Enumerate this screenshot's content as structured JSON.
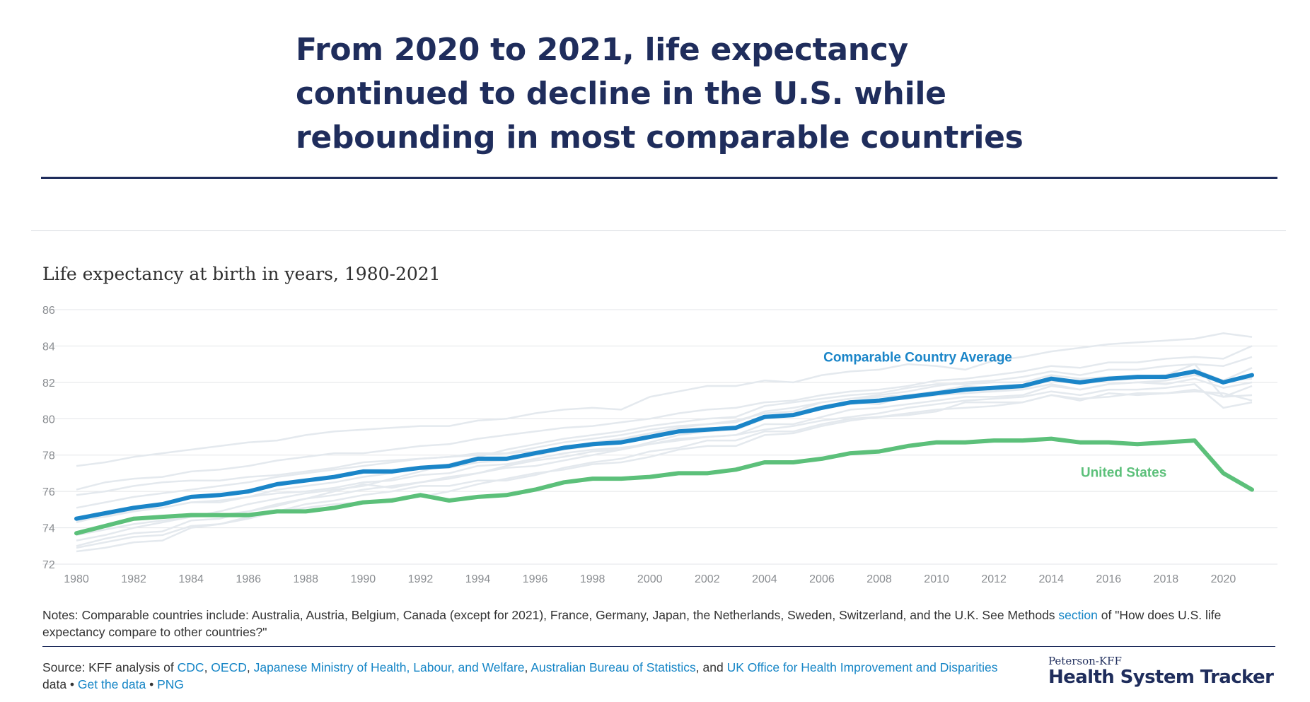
{
  "title": "From 2020 to 2021, life expectancy continued to decline in the U.S. while rebounding in most comparable countries",
  "subtitle": "Life expectancy at birth in years, 1980-2021",
  "notes": {
    "before_link": "Notes: Comparable countries include: Australia, Austria, Belgium, Canada (except for 2021), France, Germany, Japan, the Netherlands, Sweden, Switzerland, and the U.K. See Methods ",
    "link": "section",
    "after_link": " of \"How does U.S. life expectancy compare to other countries?\""
  },
  "source": {
    "prefix": "Source: KFF analysis of ",
    "links": [
      "CDC",
      "OECD",
      "Japanese Ministry of Health, Labour, and Welfare",
      "Australian Bureau of Statistics",
      "UK Office for Health Improvement and Disparities"
    ],
    "sep1": ", ",
    "and": ", and ",
    "data_word": " data • ",
    "get_data": "Get the data",
    "bullet": " • ",
    "png": "PNG"
  },
  "brand": {
    "small": "Peterson-KFF",
    "big": "Health System Tracker"
  },
  "colors": {
    "navy": "#1f2d5c",
    "avg": "#1a85c8",
    "us": "#5cc07a",
    "background_lines": "#e4e9ee",
    "grid": "#e3e5e8",
    "link": "#1585c6"
  },
  "chart_data": {
    "type": "line",
    "x": [
      1980,
      1981,
      1982,
      1983,
      1984,
      1985,
      1986,
      1987,
      1988,
      1989,
      1990,
      1991,
      1992,
      1993,
      1994,
      1995,
      1996,
      1997,
      1998,
      1999,
      2000,
      2001,
      2002,
      2003,
      2004,
      2005,
      2006,
      2007,
      2008,
      2009,
      2010,
      2011,
      2012,
      2013,
      2014,
      2015,
      2016,
      2017,
      2018,
      2019,
      2020,
      2021
    ],
    "x_ticks": [
      "1980",
      "1982",
      "1984",
      "1986",
      "1988",
      "1990",
      "1992",
      "1994",
      "1996",
      "1998",
      "2000",
      "2002",
      "2004",
      "2006",
      "2008",
      "2010",
      "2012",
      "2014",
      "2016",
      "2018",
      "2020"
    ],
    "ylim": [
      72,
      86
    ],
    "y_ticks": [
      "72",
      "74",
      "76",
      "78",
      "80",
      "82",
      "84",
      "86"
    ],
    "grid": true,
    "series": [
      {
        "name": "Comparable Country Average",
        "color": "#1a85c8",
        "values": [
          74.5,
          74.8,
          75.1,
          75.3,
          75.7,
          75.8,
          76.0,
          76.4,
          76.6,
          76.8,
          77.1,
          77.1,
          77.3,
          77.4,
          77.8,
          77.8,
          78.1,
          78.4,
          78.6,
          78.7,
          79.0,
          79.3,
          79.4,
          79.5,
          80.1,
          80.2,
          80.6,
          80.9,
          81.0,
          81.2,
          81.4,
          81.6,
          81.7,
          81.8,
          82.2,
          82.0,
          82.2,
          82.3,
          82.3,
          82.6,
          82.0,
          82.4
        ]
      },
      {
        "name": "United States",
        "color": "#5cc07a",
        "values": [
          73.7,
          74.1,
          74.5,
          74.6,
          74.7,
          74.7,
          74.7,
          74.9,
          74.9,
          75.1,
          75.4,
          75.5,
          75.8,
          75.5,
          75.7,
          75.8,
          76.1,
          76.5,
          76.7,
          76.7,
          76.8,
          77.0,
          77.0,
          77.2,
          77.6,
          77.6,
          77.8,
          78.1,
          78.2,
          78.5,
          78.7,
          78.7,
          78.8,
          78.8,
          78.9,
          78.7,
          78.7,
          78.6,
          78.7,
          78.8,
          77.0,
          76.1
        ]
      }
    ],
    "background_series": [
      [
        77.4,
        77.6,
        77.9,
        78.1,
        78.3,
        78.5,
        78.7,
        78.8,
        79.1,
        79.3,
        79.4,
        79.5,
        79.6,
        79.6,
        79.9,
        80.0,
        80.3,
        80.5,
        80.6,
        80.5,
        81.2,
        81.5,
        81.8,
        81.8,
        82.1,
        82.0,
        82.4,
        82.6,
        82.7,
        83.0,
        82.9,
        82.7,
        83.2,
        83.4,
        83.7,
        83.9,
        84.1,
        84.2,
        84.3,
        84.4,
        84.7,
        84.5
      ],
      [
        76.1,
        76.5,
        76.7,
        76.8,
        77.1,
        77.2,
        77.4,
        77.7,
        77.9,
        78.1,
        78.1,
        78.3,
        78.5,
        78.6,
        78.9,
        79.1,
        79.3,
        79.5,
        79.6,
        79.8,
        80.0,
        80.3,
        80.5,
        80.6,
        80.9,
        81.0,
        81.3,
        81.5,
        81.6,
        81.8,
        82.1,
        82.2,
        82.4,
        82.6,
        82.9,
        82.8,
        83.1,
        83.1,
        83.3,
        83.4,
        83.3,
        84.0
      ],
      [
        75.8,
        76.0,
        76.3,
        76.5,
        76.6,
        76.6,
        76.8,
        76.9,
        77.1,
        77.3,
        77.6,
        77.7,
        77.8,
        77.9,
        78.1,
        78.1,
        78.2,
        78.4,
        78.7,
        78.9,
        79.2,
        79.4,
        79.5,
        79.5,
        80.1,
        80.3,
        80.7,
        80.9,
        80.8,
        81.3,
        81.5,
        81.8,
        81.7,
        81.8,
        82.3,
        82.0,
        82.3,
        82.3,
        82.4,
        83.0,
        81.2,
        81.8
      ],
      [
        75.1,
        75.4,
        75.7,
        75.9,
        76.1,
        76.3,
        76.5,
        76.8,
        77.0,
        77.2,
        77.4,
        77.6,
        77.8,
        77.9,
        78.0,
        78.1,
        78.4,
        78.7,
        78.9,
        79.1,
        79.4,
        79.6,
        79.7,
        79.9,
        80.3,
        80.4,
        80.9,
        81.1,
        81.3,
        81.5,
        81.8,
        82.0,
        82.1,
        82.3,
        82.6,
        82.4,
        82.7,
        82.7,
        82.9,
        83.0,
        82.9,
        83.4
      ],
      [
        74.4,
        74.6,
        74.9,
        75.1,
        75.4,
        75.5,
        75.7,
        75.9,
        76.0,
        76.2,
        76.5,
        76.6,
        76.9,
        77.0,
        77.4,
        77.5,
        77.8,
        78.1,
        78.3,
        78.4,
        78.6,
        78.9,
        79.0,
        79.1,
        79.7,
        79.7,
        80.1,
        80.5,
        80.6,
        80.8,
        81.0,
        81.2,
        81.2,
        81.3,
        81.8,
        81.6,
        81.9,
        82.0,
        82.1,
        82.4,
        82.1,
        82.2
      ],
      [
        74.3,
        74.7,
        75.0,
        75.1,
        75.4,
        75.4,
        75.7,
        76.1,
        76.3,
        76.5,
        76.8,
        77.0,
        77.3,
        77.3,
        77.6,
        77.7,
        78.0,
        78.3,
        78.5,
        78.8,
        79.2,
        79.5,
        79.7,
        79.8,
        80.4,
        80.6,
        80.9,
        81.1,
        81.2,
        81.3,
        81.5,
        81.6,
        81.5,
        81.7,
        82.1,
        81.9,
        82.1,
        82.2,
        82.3,
        82.7,
        82.1,
        82.8
      ],
      [
        73.3,
        73.6,
        74.0,
        74.3,
        74.6,
        74.9,
        75.3,
        75.6,
        75.9,
        76.1,
        76.3,
        76.7,
        77.1,
        77.5,
        77.9,
        78.3,
        78.6,
        78.9,
        79.1,
        79.3,
        79.6,
        79.8,
        80.0,
        80.1,
        80.7,
        80.9,
        81.1,
        81.3,
        81.4,
        81.7,
        81.9,
        81.9,
        82.0,
        82.0,
        82.4,
        82.2,
        82.3,
        82.3,
        82.4,
        82.5,
        82.1,
        82.3
      ],
      [
        73.0,
        73.4,
        73.7,
        73.8,
        74.4,
        74.5,
        74.9,
        75.3,
        75.6,
        76.0,
        76.4,
        76.2,
        76.5,
        76.7,
        77.0,
        77.3,
        77.4,
        77.7,
        78.0,
        78.3,
        78.7,
        79.1,
        79.3,
        79.4,
        80.0,
        80.3,
        80.6,
        80.8,
        81.0,
        81.1,
        81.3,
        81.4,
        81.5,
        81.6,
        81.9,
        81.6,
        81.9,
        82.0,
        81.9,
        82.2,
        81.7,
        82.0
      ],
      [
        72.9,
        73.2,
        73.5,
        73.6,
        74.1,
        74.2,
        74.6,
        74.9,
        75.3,
        75.5,
        75.8,
        76.0,
        76.3,
        76.3,
        76.6,
        76.6,
        76.9,
        77.3,
        77.6,
        77.8,
        78.2,
        78.4,
        78.8,
        78.8,
        79.3,
        79.3,
        79.7,
        80.0,
        80.1,
        80.2,
        80.4,
        80.9,
        80.9,
        80.9,
        81.3,
        81.0,
        81.4,
        81.3,
        81.4,
        81.5,
        81.4,
        81.0
      ],
      [
        72.7,
        72.9,
        73.2,
        73.3,
        74.0,
        74.2,
        74.5,
        74.9,
        75.1,
        75.3,
        75.4,
        75.6,
        75.7,
        76.0,
        76.4,
        76.7,
        77.0,
        77.2,
        77.5,
        77.6,
        77.9,
        78.3,
        78.5,
        78.5,
        79.1,
        79.2,
        79.6,
        79.9,
        80.1,
        80.3,
        80.5,
        80.6,
        80.7,
        80.9,
        81.3,
        81.1,
        81.2,
        81.4,
        81.4,
        81.6,
        81.2,
        81.3
      ],
      [
        73.6,
        73.9,
        74.2,
        74.4,
        74.6,
        74.7,
        74.9,
        75.2,
        75.6,
        75.8,
        76.1,
        76.3,
        76.5,
        76.8,
        77.0,
        77.4,
        77.7,
        77.9,
        78.2,
        78.3,
        78.6,
        78.8,
        79.0,
        79.1,
        79.4,
        79.6,
        79.9,
        80.1,
        80.3,
        80.6,
        80.8,
        81.0,
        81.1,
        81.2,
        81.5,
        81.3,
        81.6,
        81.6,
        81.7,
        81.9,
        80.6,
        80.9
      ]
    ],
    "annotations": [
      {
        "text": "Comparable Country Average",
        "series": "Comparable Country Average"
      },
      {
        "text": "United States",
        "series": "United States"
      }
    ]
  }
}
